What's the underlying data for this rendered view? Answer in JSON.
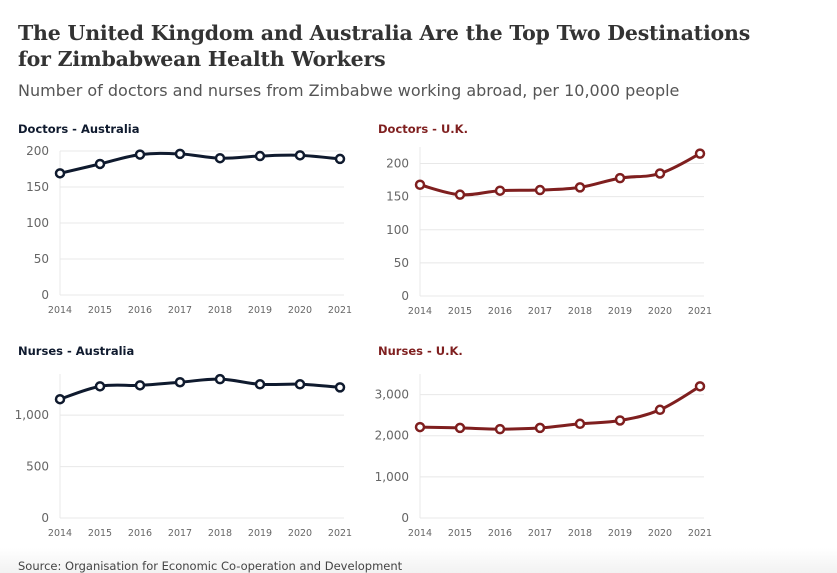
{
  "header": {
    "title_line1": "The United Kingdom and Australia Are the Top Two Destinations",
    "title_line2": "for Zimbabwean Health Workers",
    "subtitle": "Number of doctors and nurses from Zimbabwe working abroad, per 10,000 people"
  },
  "footer": {
    "source": "Source: Organisation for Economic Co-operation and Development"
  },
  "colors": {
    "australia": "#0f1a2e",
    "uk": "#7f1f1f",
    "grid": "#e8e8e8"
  },
  "chart_data": [
    {
      "type": "line",
      "title": "Doctors - Australia",
      "color_key": "australia",
      "x": [
        2014,
        2015,
        2016,
        2017,
        2018,
        2019,
        2020,
        2021
      ],
      "x_tick_labels": [
        "2014",
        "2015",
        "2016",
        "2017",
        "2018",
        "2019",
        "2020",
        "2021"
      ],
      "values": [
        169,
        182,
        195,
        196,
        190,
        193,
        194,
        189
      ],
      "y_ticks": [
        0,
        50,
        100,
        150,
        200
      ],
      "y_tick_labels": [
        "0",
        "50",
        "100",
        "150",
        "200"
      ],
      "ylim": [
        0,
        200
      ],
      "grid": true,
      "xlabel": "",
      "ylabel": ""
    },
    {
      "type": "line",
      "title": "Doctors - U.K.",
      "color_key": "uk",
      "x": [
        2014,
        2015,
        2016,
        2017,
        2018,
        2019,
        2020,
        2021
      ],
      "x_tick_labels": [
        "2014",
        "2015",
        "2016",
        "2017",
        "2018",
        "2019",
        "2020",
        "2021"
      ],
      "values": [
        168,
        153,
        159,
        160,
        164,
        178,
        185,
        215
      ],
      "y_ticks": [
        0,
        50,
        100,
        150,
        200
      ],
      "y_tick_labels": [
        "0",
        "50",
        "100",
        "150",
        "200"
      ],
      "ylim": [
        0,
        225
      ],
      "grid": true,
      "xlabel": "",
      "ylabel": ""
    },
    {
      "type": "line",
      "title": "Nurses - Australia",
      "color_key": "australia",
      "x": [
        2014,
        2015,
        2016,
        2017,
        2018,
        2019,
        2020,
        2021
      ],
      "x_tick_labels": [
        "2014",
        "2015",
        "2016",
        "2017",
        "2018",
        "2019",
        "2020",
        "2021"
      ],
      "values": [
        1155,
        1280,
        1290,
        1320,
        1350,
        1300,
        1300,
        1270
      ],
      "y_ticks": [
        0,
        500,
        1000
      ],
      "y_tick_labels": [
        "0",
        "500",
        "1,000"
      ],
      "ylim": [
        0,
        1400
      ],
      "grid": true,
      "xlabel": "",
      "ylabel": ""
    },
    {
      "type": "line",
      "title": "Nurses - U.K.",
      "color_key": "uk",
      "x": [
        2014,
        2015,
        2016,
        2017,
        2018,
        2019,
        2020,
        2021
      ],
      "x_tick_labels": [
        "2014",
        "2015",
        "2016",
        "2017",
        "2018",
        "2019",
        "2020",
        "2021"
      ],
      "values": [
        2210,
        2190,
        2160,
        2190,
        2290,
        2370,
        2630,
        3200
      ],
      "y_ticks": [
        0,
        1000,
        2000,
        3000
      ],
      "y_tick_labels": [
        "0",
        "1,000",
        "2,000",
        "3,000"
      ],
      "ylim": [
        0,
        3500
      ],
      "grid": true,
      "xlabel": "",
      "ylabel": ""
    }
  ]
}
